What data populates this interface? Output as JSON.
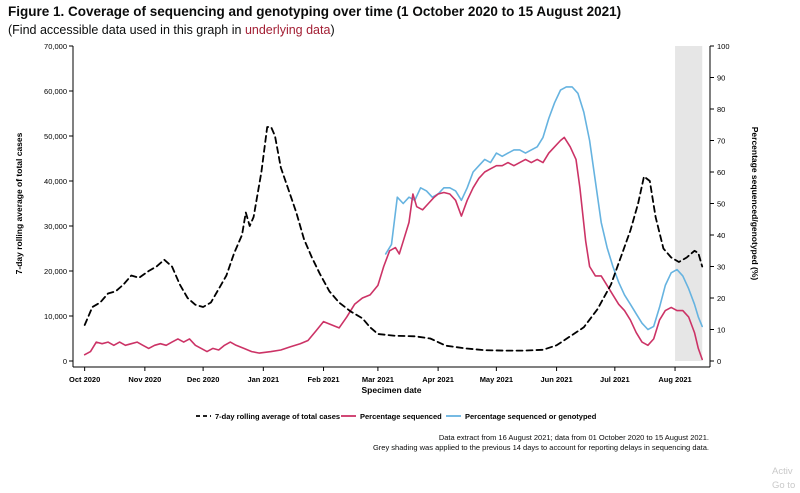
{
  "header": {
    "title": "Figure 1. Coverage of sequencing and genotyping over time (1 October 2020 to 15 August 2021)",
    "subtitle_open": "(Find accessible data used in this graph in ",
    "subtitle_link": "underlying data",
    "subtitle_close": ")"
  },
  "chart_data": {
    "type": "line",
    "xlabel": "Specimen date",
    "ylabel": "7-day rolling average of total cases",
    "y2label": "Percentage sequenced/genotyped (%)",
    "x_range": [
      "2020-09-25",
      "2021-08-19"
    ],
    "ylim": [
      0,
      70000
    ],
    "y2lim": [
      0,
      100
    ],
    "yticks": [
      0,
      10000,
      20000,
      30000,
      40000,
      50000,
      60000,
      70000
    ],
    "y2ticks": [
      0,
      10,
      20,
      30,
      40,
      50,
      60,
      70,
      80,
      90,
      100
    ],
    "ytick_labels": [
      "0",
      "10,000",
      "20,000",
      "30,000",
      "40,000",
      "50,000",
      "60,000",
      "70,000"
    ],
    "xticks": [
      {
        "date": "2020-10-01",
        "label": "Oct 2020"
      },
      {
        "date": "2020-11-01",
        "label": "Nov 2020"
      },
      {
        "date": "2020-12-01",
        "label": "Dec 2020"
      },
      {
        "date": "2021-01-01",
        "label": "Jan 2021"
      },
      {
        "date": "2021-02-01",
        "label": "Feb 2021"
      },
      {
        "date": "2021-03-01",
        "label": "Mar 2021"
      },
      {
        "date": "2021-04-01",
        "label": "Apr 2021"
      },
      {
        "date": "2021-05-01",
        "label": "May 2021"
      },
      {
        "date": "2021-06-01",
        "label": "Jun 2021"
      },
      {
        "date": "2021-07-01",
        "label": "Jul 2021"
      },
      {
        "date": "2021-08-01",
        "label": "Aug 2021"
      }
    ],
    "shaded_range": [
      "2021-08-01",
      "2021-08-15"
    ],
    "shading_color": "#e6e6e6",
    "grid": false,
    "legend_position": "bottom",
    "series": [
      {
        "name": "7-day rolling average of total cases",
        "axis": "left",
        "color": "#000000",
        "dash": "dashed",
        "points": [
          [
            "2020-10-01",
            8000
          ],
          [
            "2020-10-05",
            12000
          ],
          [
            "2020-10-09",
            13000
          ],
          [
            "2020-10-13",
            15000
          ],
          [
            "2020-10-17",
            15500
          ],
          [
            "2020-10-21",
            17000
          ],
          [
            "2020-10-25",
            19000
          ],
          [
            "2020-10-29",
            18500
          ],
          [
            "2020-11-03",
            20000
          ],
          [
            "2020-11-07",
            21000
          ],
          [
            "2020-11-11",
            22500
          ],
          [
            "2020-11-15",
            21000
          ],
          [
            "2020-11-19",
            17000
          ],
          [
            "2020-11-23",
            14000
          ],
          [
            "2020-11-27",
            12500
          ],
          [
            "2020-12-01",
            12000
          ],
          [
            "2020-12-05",
            13000
          ],
          [
            "2020-12-09",
            16000
          ],
          [
            "2020-12-13",
            19000
          ],
          [
            "2020-12-17",
            24000
          ],
          [
            "2020-12-21",
            28000
          ],
          [
            "2020-12-23",
            33000
          ],
          [
            "2020-12-25",
            30000
          ],
          [
            "2020-12-27",
            32000
          ],
          [
            "2020-12-31",
            42000
          ],
          [
            "2021-01-03",
            52000
          ],
          [
            "2021-01-05",
            52000
          ],
          [
            "2021-01-07",
            50000
          ],
          [
            "2021-01-10",
            43000
          ],
          [
            "2021-01-14",
            38000
          ],
          [
            "2021-01-18",
            33000
          ],
          [
            "2021-01-22",
            27000
          ],
          [
            "2021-01-26",
            23000
          ],
          [
            "2021-01-30",
            19500
          ],
          [
            "2021-02-04",
            15500
          ],
          [
            "2021-02-09",
            13000
          ],
          [
            "2021-02-15",
            11000
          ],
          [
            "2021-02-21",
            9500
          ],
          [
            "2021-02-25",
            7500
          ],
          [
            "2021-03-01",
            6000
          ],
          [
            "2021-03-10",
            5600
          ],
          [
            "2021-03-20",
            5500
          ],
          [
            "2021-03-28",
            5000
          ],
          [
            "2021-04-05",
            3400
          ],
          [
            "2021-04-15",
            2800
          ],
          [
            "2021-04-25",
            2400
          ],
          [
            "2021-05-05",
            2300
          ],
          [
            "2021-05-15",
            2300
          ],
          [
            "2021-05-25",
            2500
          ],
          [
            "2021-06-01",
            3500
          ],
          [
            "2021-06-08",
            5500
          ],
          [
            "2021-06-15",
            7500
          ],
          [
            "2021-06-22",
            11500
          ],
          [
            "2021-06-29",
            17000
          ],
          [
            "2021-07-04",
            23000
          ],
          [
            "2021-07-09",
            29000
          ],
          [
            "2021-07-13",
            35000
          ],
          [
            "2021-07-16",
            41000
          ],
          [
            "2021-07-19",
            40000
          ],
          [
            "2021-07-22",
            32000
          ],
          [
            "2021-07-26",
            25000
          ],
          [
            "2021-07-30",
            23000
          ],
          [
            "2021-08-03",
            22000
          ],
          [
            "2021-08-07",
            23000
          ],
          [
            "2021-08-11",
            24500
          ],
          [
            "2021-08-13",
            24000
          ],
          [
            "2021-08-15",
            21000
          ]
        ]
      },
      {
        "name": "Percentage sequenced",
        "axis": "right",
        "color": "#cc3366",
        "dash": "solid",
        "points": [
          [
            "2020-10-01",
            2
          ],
          [
            "2020-10-04",
            3
          ],
          [
            "2020-10-07",
            6
          ],
          [
            "2020-10-10",
            5.5
          ],
          [
            "2020-10-13",
            6
          ],
          [
            "2020-10-16",
            5
          ],
          [
            "2020-10-19",
            6
          ],
          [
            "2020-10-22",
            5
          ],
          [
            "2020-10-25",
            5.5
          ],
          [
            "2020-10-28",
            6
          ],
          [
            "2020-10-31",
            5
          ],
          [
            "2020-11-03",
            4
          ],
          [
            "2020-11-06",
            5
          ],
          [
            "2020-11-09",
            5.5
          ],
          [
            "2020-11-12",
            5
          ],
          [
            "2020-11-15",
            6
          ],
          [
            "2020-11-18",
            7
          ],
          [
            "2020-11-21",
            6
          ],
          [
            "2020-11-24",
            7
          ],
          [
            "2020-11-27",
            5
          ],
          [
            "2020-11-30",
            4
          ],
          [
            "2020-12-03",
            3
          ],
          [
            "2020-12-06",
            4
          ],
          [
            "2020-12-09",
            3.5
          ],
          [
            "2020-12-12",
            5
          ],
          [
            "2020-12-15",
            6
          ],
          [
            "2020-12-18",
            5
          ],
          [
            "2020-12-22",
            4
          ],
          [
            "2020-12-26",
            3
          ],
          [
            "2020-12-30",
            2.5
          ],
          [
            "2021-01-05",
            3
          ],
          [
            "2021-01-10",
            3.5
          ],
          [
            "2021-01-15",
            4.5
          ],
          [
            "2021-01-20",
            5.5
          ],
          [
            "2021-01-24",
            6.5
          ],
          [
            "2021-01-28",
            9.5
          ],
          [
            "2021-02-01",
            12.5
          ],
          [
            "2021-02-05",
            11.5
          ],
          [
            "2021-02-09",
            10.5
          ],
          [
            "2021-02-13",
            14
          ],
          [
            "2021-02-17",
            18
          ],
          [
            "2021-02-21",
            20
          ],
          [
            "2021-02-25",
            21
          ],
          [
            "2021-03-01",
            24
          ],
          [
            "2021-03-04",
            30
          ],
          [
            "2021-03-07",
            35
          ],
          [
            "2021-03-10",
            36
          ],
          [
            "2021-03-12",
            34
          ],
          [
            "2021-03-14",
            38
          ],
          [
            "2021-03-17",
            44
          ],
          [
            "2021-03-19",
            53
          ],
          [
            "2021-03-21",
            49
          ],
          [
            "2021-03-24",
            48
          ],
          [
            "2021-03-27",
            50
          ],
          [
            "2021-03-30",
            52
          ],
          [
            "2021-04-01",
            53
          ],
          [
            "2021-04-04",
            53.5
          ],
          [
            "2021-04-07",
            53
          ],
          [
            "2021-04-10",
            51
          ],
          [
            "2021-04-13",
            46
          ],
          [
            "2021-04-16",
            51
          ],
          [
            "2021-04-19",
            55
          ],
          [
            "2021-04-22",
            58
          ],
          [
            "2021-04-25",
            60
          ],
          [
            "2021-04-28",
            61
          ],
          [
            "2021-05-01",
            62
          ],
          [
            "2021-05-04",
            62
          ],
          [
            "2021-05-07",
            63
          ],
          [
            "2021-05-10",
            62
          ],
          [
            "2021-05-13",
            63
          ],
          [
            "2021-05-16",
            64
          ],
          [
            "2021-05-19",
            63
          ],
          [
            "2021-05-22",
            64
          ],
          [
            "2021-05-25",
            63
          ],
          [
            "2021-05-28",
            66
          ],
          [
            "2021-05-31",
            68
          ],
          [
            "2021-06-03",
            70
          ],
          [
            "2021-06-05",
            71
          ],
          [
            "2021-06-08",
            68
          ],
          [
            "2021-06-11",
            64
          ],
          [
            "2021-06-13",
            55
          ],
          [
            "2021-06-16",
            38
          ],
          [
            "2021-06-18",
            30
          ],
          [
            "2021-06-21",
            27
          ],
          [
            "2021-06-24",
            27
          ],
          [
            "2021-06-27",
            24
          ],
          [
            "2021-06-30",
            21
          ],
          [
            "2021-07-03",
            18
          ],
          [
            "2021-07-06",
            16
          ],
          [
            "2021-07-09",
            13
          ],
          [
            "2021-07-12",
            9
          ],
          [
            "2021-07-15",
            6
          ],
          [
            "2021-07-18",
            5
          ],
          [
            "2021-07-21",
            7
          ],
          [
            "2021-07-24",
            13
          ],
          [
            "2021-07-27",
            16
          ],
          [
            "2021-07-30",
            17
          ],
          [
            "2021-08-02",
            16
          ],
          [
            "2021-08-05",
            16
          ],
          [
            "2021-08-08",
            14
          ],
          [
            "2021-08-11",
            9
          ],
          [
            "2021-08-13",
            4
          ],
          [
            "2021-08-15",
            0.5
          ]
        ]
      },
      {
        "name": "Percentage sequenced or genotyped",
        "axis": "right",
        "color": "#66b3e0",
        "dash": "solid",
        "points": [
          [
            "2021-03-05",
            34
          ],
          [
            "2021-03-08",
            37
          ],
          [
            "2021-03-11",
            52
          ],
          [
            "2021-03-14",
            50
          ],
          [
            "2021-03-17",
            52
          ],
          [
            "2021-03-20",
            51
          ],
          [
            "2021-03-23",
            55
          ],
          [
            "2021-03-26",
            54
          ],
          [
            "2021-03-29",
            52
          ],
          [
            "2021-04-01",
            53
          ],
          [
            "2021-04-04",
            55
          ],
          [
            "2021-04-07",
            55
          ],
          [
            "2021-04-10",
            54
          ],
          [
            "2021-04-13",
            51
          ],
          [
            "2021-04-16",
            55
          ],
          [
            "2021-04-19",
            60
          ],
          [
            "2021-04-22",
            62
          ],
          [
            "2021-04-25",
            64
          ],
          [
            "2021-04-28",
            63
          ],
          [
            "2021-05-01",
            66
          ],
          [
            "2021-05-04",
            65
          ],
          [
            "2021-05-07",
            66
          ],
          [
            "2021-05-10",
            67
          ],
          [
            "2021-05-13",
            67
          ],
          [
            "2021-05-16",
            66
          ],
          [
            "2021-05-19",
            67
          ],
          [
            "2021-05-22",
            68
          ],
          [
            "2021-05-25",
            71
          ],
          [
            "2021-05-28",
            77
          ],
          [
            "2021-05-31",
            82
          ],
          [
            "2021-06-03",
            86
          ],
          [
            "2021-06-06",
            87
          ],
          [
            "2021-06-09",
            87
          ],
          [
            "2021-06-12",
            85
          ],
          [
            "2021-06-15",
            79
          ],
          [
            "2021-06-18",
            70
          ],
          [
            "2021-06-21",
            57
          ],
          [
            "2021-06-24",
            44
          ],
          [
            "2021-06-27",
            36
          ],
          [
            "2021-06-30",
            30
          ],
          [
            "2021-07-03",
            25
          ],
          [
            "2021-07-06",
            21
          ],
          [
            "2021-07-09",
            18
          ],
          [
            "2021-07-12",
            15
          ],
          [
            "2021-07-15",
            12
          ],
          [
            "2021-07-18",
            10
          ],
          [
            "2021-07-21",
            11
          ],
          [
            "2021-07-24",
            17
          ],
          [
            "2021-07-27",
            24
          ],
          [
            "2021-07-30",
            28
          ],
          [
            "2021-08-02",
            29
          ],
          [
            "2021-08-05",
            27
          ],
          [
            "2021-08-08",
            23
          ],
          [
            "2021-08-11",
            18
          ],
          [
            "2021-08-13",
            14
          ],
          [
            "2021-08-15",
            11
          ]
        ]
      }
    ]
  },
  "footnotes": [
    "Data extract from 16 August 2021; data from 01 October 2020 to 15 August 2021.",
    "Grey shading was applied to the previous 14 days to account for reporting delays in sequencing data."
  ],
  "watermark": {
    "line1": "Activ",
    "line2": "Go to"
  }
}
